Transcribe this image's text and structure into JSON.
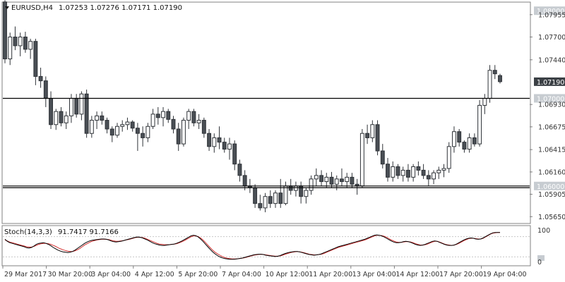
{
  "header": {
    "symbol_label": "EURUSD,H4",
    "ohlc_values": "1.07253 1.07276 1.07171 1.07190"
  },
  "indicator": {
    "label": "Stoch(14,3,3)",
    "values": "91.7417 91.7166",
    "scale_top": "100",
    "scale_bottom": "0",
    "main_color": "#000000",
    "signal_color": "#d32f2f"
  },
  "colors": {
    "bear": "#4a4f55",
    "bull": "#ffffff",
    "outline": "#2f3338",
    "tag_fill": "#c7ccd1",
    "current_tag_fill": "#3a3f44"
  },
  "chart_data": {
    "type": "candlestick",
    "ylim": [
      1.0558,
      1.0809
    ],
    "y_ticks": [
      "1.07955",
      "1.07700",
      "1.07440",
      "1.06930",
      "1.06675",
      "1.06415",
      "1.06160",
      "1.05905",
      "1.05650"
    ],
    "x_ticks": [
      "29 Mar 2017",
      "30 Mar 20:00",
      "3 Apr 04:00",
      "4 Apr 12:00",
      "5 Apr 20:00",
      "7 Apr 04:00",
      "10 Apr 12:00",
      "11 Apr 20:00",
      "13 Apr 04:00",
      "14 Apr 12:00",
      "17 Apr 20:00",
      "19 Apr 04:00"
    ],
    "levels": [
      {
        "price": 1.07,
        "label": "1.07000"
      },
      {
        "price": 1.06,
        "label": "1.06000"
      },
      {
        "price": 1.0598,
        "label": ""
      }
    ],
    "top_tag": "1.08000",
    "current_price": {
      "price": 1.0719,
      "label": "1.07190"
    },
    "candles": [
      [
        1.081,
        1.0812,
        1.074,
        1.0745
      ],
      [
        1.0745,
        1.0775,
        1.0738,
        1.077
      ],
      [
        1.077,
        1.0782,
        1.0755,
        1.076
      ],
      [
        1.076,
        1.0775,
        1.0748,
        1.077
      ],
      [
        1.077,
        1.0776,
        1.0752,
        1.0756
      ],
      [
        1.0756,
        1.0768,
        1.0745,
        1.0765
      ],
      [
        1.0765,
        1.0768,
        1.0715,
        1.0725
      ],
      [
        1.0725,
        1.0735,
        1.0712,
        1.072
      ],
      [
        1.072,
        1.0725,
        1.069,
        1.07
      ],
      [
        1.07,
        1.0708,
        1.0665,
        1.067
      ],
      [
        1.067,
        1.0688,
        1.0664,
        1.0685
      ],
      [
        1.0685,
        1.069,
        1.0668,
        1.0672
      ],
      [
        1.0672,
        1.0685,
        1.0665,
        1.068
      ],
      [
        1.068,
        1.0705,
        1.0672,
        1.07
      ],
      [
        1.07,
        1.0705,
        1.0678,
        1.0682
      ],
      [
        1.0682,
        1.0708,
        1.0675,
        1.0705
      ],
      [
        1.0705,
        1.071,
        1.0655,
        1.066
      ],
      [
        1.066,
        1.068,
        1.0655,
        1.0675
      ],
      [
        1.0675,
        1.0685,
        1.0665,
        1.068
      ],
      [
        1.068,
        1.0685,
        1.067,
        1.0675
      ],
      [
        1.0675,
        1.0678,
        1.066,
        1.0665
      ],
      [
        1.0665,
        1.0668,
        1.065,
        1.0658
      ],
      [
        1.0658,
        1.0672,
        1.0655,
        1.0668
      ],
      [
        1.0668,
        1.0675,
        1.0662,
        1.067
      ],
      [
        1.067,
        1.0678,
        1.0664,
        1.0673
      ],
      [
        1.0673,
        1.0675,
        1.0662,
        1.0666
      ],
      [
        1.0666,
        1.0672,
        1.064,
        1.066
      ],
      [
        1.066,
        1.0668,
        1.0645,
        1.0655
      ],
      [
        1.0655,
        1.0672,
        1.065,
        1.0668
      ],
      [
        1.0668,
        1.0688,
        1.0665,
        1.0682
      ],
      [
        1.0682,
        1.069,
        1.067,
        1.0678
      ],
      [
        1.0678,
        1.069,
        1.0668,
        1.0685
      ],
      [
        1.0685,
        1.0688,
        1.0672,
        1.0676
      ],
      [
        1.0676,
        1.068,
        1.066,
        1.0665
      ],
      [
        1.0665,
        1.0672,
        1.064,
        1.0648
      ],
      [
        1.0648,
        1.0678,
        1.0645,
        1.0675
      ],
      [
        1.0675,
        1.0688,
        1.0665,
        1.0685
      ],
      [
        1.0685,
        1.0688,
        1.0668,
        1.0672
      ],
      [
        1.0672,
        1.0682,
        1.0665,
        1.0675
      ],
      [
        1.0675,
        1.0678,
        1.0655,
        1.066
      ],
      [
        1.066,
        1.0665,
        1.064,
        1.0645
      ],
      [
        1.0645,
        1.066,
        1.0638,
        1.0655
      ],
      [
        1.0655,
        1.0668,
        1.0642,
        1.065
      ],
      [
        1.065,
        1.0655,
        1.0638,
        1.0642
      ],
      [
        1.0642,
        1.0655,
        1.063,
        1.0648
      ],
      [
        1.0648,
        1.0652,
        1.0618,
        1.0625
      ],
      [
        1.0625,
        1.063,
        1.0605,
        1.0612
      ],
      [
        1.0612,
        1.0618,
        1.0595,
        1.06
      ],
      [
        1.06,
        1.0608,
        1.0592,
        1.0598
      ],
      [
        1.0598,
        1.0602,
        1.0575,
        1.058
      ],
      [
        1.058,
        1.059,
        1.0572,
        1.0575
      ],
      [
        1.0575,
        1.0592,
        1.057,
        1.0588
      ],
      [
        1.0588,
        1.0595,
        1.0575,
        1.058
      ],
      [
        1.058,
        1.0595,
        1.0575,
        1.0592
      ],
      [
        1.0592,
        1.0608,
        1.0575,
        1.058
      ],
      [
        1.058,
        1.0605,
        1.0578,
        1.06
      ],
      [
        1.06,
        1.0608,
        1.059,
        1.0595
      ],
      [
        1.0595,
        1.0605,
        1.0588,
        1.06
      ],
      [
        1.06,
        1.0605,
        1.058,
        1.0588
      ],
      [
        1.0588,
        1.0598,
        1.058,
        1.0595
      ],
      [
        1.0595,
        1.0612,
        1.059,
        1.0608
      ],
      [
        1.0608,
        1.062,
        1.06,
        1.0612
      ],
      [
        1.0612,
        1.0618,
        1.06,
        1.0605
      ],
      [
        1.0605,
        1.0615,
        1.0598,
        1.061
      ],
      [
        1.061,
        1.0616,
        1.0598,
        1.0602
      ],
      [
        1.0602,
        1.0612,
        1.0595,
        1.0608
      ],
      [
        1.0608,
        1.062,
        1.06,
        1.0605
      ],
      [
        1.0605,
        1.0615,
        1.0598,
        1.061
      ],
      [
        1.061,
        1.0615,
        1.0598,
        1.0602
      ],
      [
        1.0602,
        1.0608,
        1.059,
        1.06
      ],
      [
        1.06,
        1.0665,
        1.0598,
        1.066
      ],
      [
        1.066,
        1.067,
        1.0648,
        1.0655
      ],
      [
        1.0655,
        1.0675,
        1.065,
        1.067
      ],
      [
        1.067,
        1.0675,
        1.0635,
        1.064
      ],
      [
        1.064,
        1.0648,
        1.062,
        1.0625
      ],
      [
        1.0625,
        1.0632,
        1.0605,
        1.061
      ],
      [
        1.061,
        1.0628,
        1.0605,
        1.0622
      ],
      [
        1.0622,
        1.0625,
        1.0608,
        1.0612
      ],
      [
        1.0612,
        1.0622,
        1.0605,
        1.0618
      ],
      [
        1.0618,
        1.0625,
        1.0605,
        1.061
      ],
      [
        1.061,
        1.0625,
        1.0605,
        1.0622
      ],
      [
        1.0622,
        1.0628,
        1.0612,
        1.0618
      ],
      [
        1.0618,
        1.0625,
        1.0608,
        1.0612
      ],
      [
        1.0612,
        1.0618,
        1.06,
        1.0608
      ],
      [
        1.0608,
        1.0618,
        1.0602,
        1.0615
      ],
      [
        1.0615,
        1.0622,
        1.0608,
        1.0618
      ],
      [
        1.0618,
        1.0625,
        1.061,
        1.062
      ],
      [
        1.062,
        1.065,
        1.0615,
        1.0645
      ],
      [
        1.0645,
        1.0668,
        1.0638,
        1.0662
      ],
      [
        1.0662,
        1.0665,
        1.0645,
        1.065
      ],
      [
        1.065,
        1.0652,
        1.0638,
        1.0642
      ],
      [
        1.0642,
        1.066,
        1.0638,
        1.0655
      ],
      [
        1.0655,
        1.066,
        1.0645,
        1.0648
      ],
      [
        1.0648,
        1.0698,
        1.0645,
        1.0692
      ],
      [
        1.0692,
        1.0705,
        1.0682,
        1.07
      ],
      [
        1.07,
        1.0738,
        1.0695,
        1.0732
      ],
      [
        1.0732,
        1.0738,
        1.0722,
        1.0728
      ],
      [
        1.0726,
        1.0728,
        1.0717,
        1.0719
      ]
    ],
    "stochastic": {
      "main": [
        72,
        66,
        62,
        60,
        58,
        56,
        54,
        52,
        50,
        47,
        46,
        48,
        52,
        57,
        60,
        61,
        62,
        60,
        57,
        53,
        48,
        44,
        40,
        37,
        35,
        34,
        33,
        34,
        36,
        40,
        45,
        50,
        55,
        60,
        64,
        67,
        69,
        70,
        71,
        72,
        73,
        73,
        72,
        70,
        67,
        65,
        64,
        65,
        66,
        68,
        70,
        72,
        74,
        76,
        78,
        79,
        78,
        76,
        73,
        70,
        66,
        62,
        59,
        57,
        55,
        54,
        54,
        55,
        56,
        57,
        58,
        60,
        63,
        66,
        70,
        74,
        78,
        82,
        84,
        83,
        79,
        73,
        66,
        58,
        50,
        42,
        35,
        29,
        24,
        20,
        17,
        15,
        14,
        13,
        13,
        13,
        14,
        15,
        16,
        18,
        20,
        22,
        24,
        26,
        27,
        28,
        28,
        27,
        25,
        24,
        23,
        22,
        21,
        22,
        24,
        27,
        30,
        32,
        34,
        35,
        36,
        36,
        35,
        33,
        31,
        29,
        27,
        26,
        25,
        26,
        27,
        29,
        32,
        35,
        38,
        41,
        44,
        47,
        50,
        52,
        54,
        56,
        58,
        60,
        62,
        64,
        66,
        68,
        70,
        72,
        75,
        78,
        81,
        84,
        85,
        84,
        82,
        79,
        75,
        71,
        67,
        64,
        62,
        62,
        63,
        65,
        66,
        65,
        63,
        60,
        57,
        55,
        54,
        55,
        57,
        60,
        63,
        66,
        67,
        66,
        63,
        60,
        57,
        55,
        54,
        54,
        55,
        58,
        62,
        66,
        70,
        73,
        75,
        76,
        75,
        73,
        72,
        73,
        76,
        80,
        84,
        88,
        91,
        92,
        92,
        92
      ],
      "signal": [
        70,
        67,
        64,
        62,
        60,
        58,
        56,
        54,
        52,
        50,
        49,
        49,
        51,
        54,
        57,
        59,
        60,
        60,
        59,
        57,
        54,
        51,
        47,
        44,
        41,
        39,
        37,
        36,
        36,
        38,
        41,
        45,
        50,
        55,
        59,
        63,
        66,
        68,
        70,
        71,
        72,
        72,
        72,
        71,
        69,
        67,
        66,
        66,
        67,
        68,
        70,
        71,
        73,
        75,
        77,
        78,
        78,
        77,
        75,
        72,
        69,
        66,
        63,
        60,
        58,
        57,
        56,
        56,
        56,
        57,
        58,
        59,
        61,
        64,
        67,
        71,
        75,
        79,
        82,
        82,
        80,
        76,
        70,
        63,
        55,
        47,
        40,
        34,
        29,
        25,
        21,
        18,
        16,
        15,
        14,
        14,
        14,
        15,
        16,
        17,
        19,
        21,
        23,
        25,
        26,
        27,
        28,
        27,
        26,
        25,
        24,
        23,
        22,
        22,
        23,
        25,
        28,
        30,
        32,
        34,
        35,
        36,
        35,
        34,
        32,
        30,
        28,
        27,
        26,
        26,
        27,
        28,
        30,
        33,
        36,
        39,
        42,
        45,
        48,
        50,
        52,
        54,
        56,
        58,
        60,
        62,
        64,
        66,
        68,
        70,
        73,
        76,
        79,
        82,
        84,
        84,
        83,
        81,
        78,
        74,
        70,
        67,
        64,
        63,
        63,
        64,
        65,
        65,
        64,
        62,
        59,
        57,
        55,
        55,
        56,
        58,
        61,
        64,
        66,
        66,
        64,
        61,
        58,
        56,
        55,
        54,
        55,
        57,
        60,
        64,
        68,
        71,
        74,
        75,
        75,
        74,
        73,
        73,
        75,
        79,
        83,
        87,
        90,
        91,
        92,
        92
      ]
    }
  }
}
